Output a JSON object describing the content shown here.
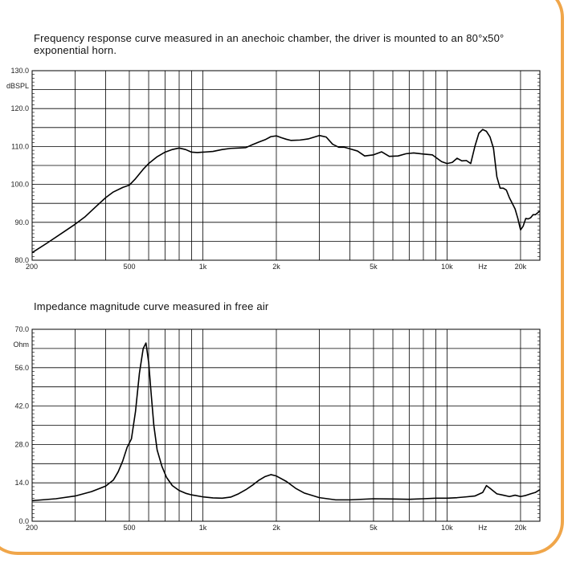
{
  "charts": {
    "frequency_response": {
      "caption": "Frequency response curve measured  in an anechoic chamber, the driver is mounted to an 80°x50° exponential horn."
    },
    "impedance": {
      "caption": "Impedance  magnitude curve measured in free air"
    }
  },
  "colors": {
    "frame": "#f0a64a",
    "grid": "#000000",
    "curve": "#000000"
  },
  "chart_data": [
    {
      "type": "line",
      "title": "Frequency response curve measured  in an anechoic chamber, the driver is mounted to an 80°x50° exponential horn.",
      "xscale": "log",
      "xlim": [
        200,
        24000
      ],
      "ylim": [
        80,
        130
      ],
      "y_unit": "dBSPL",
      "x_unit": "Hz",
      "x_tick_labels": [
        {
          "v": 200,
          "t": "200"
        },
        {
          "v": 500,
          "t": "500"
        },
        {
          "v": 1000,
          "t": "1k"
        },
        {
          "v": 2000,
          "t": "2k"
        },
        {
          "v": 5000,
          "t": "5k"
        },
        {
          "v": 10000,
          "t": "10k"
        },
        {
          "v": 20000,
          "t": "20k"
        }
      ],
      "y_tick_labels": [
        {
          "v": 130,
          "t": "130.0"
        },
        {
          "v": 120,
          "t": "120.0"
        },
        {
          "v": 110,
          "t": "110.0"
        },
        {
          "v": 100,
          "t": "100.0"
        },
        {
          "v": 90,
          "t": "90.0"
        },
        {
          "v": 80,
          "t": "80.0"
        }
      ],
      "grid": true,
      "series": [
        {
          "x": [
            200,
            230,
            270,
            300,
            330,
            370,
            400,
            430,
            470,
            500,
            530,
            570,
            600,
            650,
            700,
            750,
            800,
            850,
            900,
            950,
            1000,
            1100,
            1200,
            1300,
            1400,
            1500,
            1600,
            1700,
            1800,
            1900,
            2000,
            2100,
            2200,
            2300,
            2500,
            2700,
            3000,
            3200,
            3400,
            3600,
            3800,
            4000,
            4300,
            4600,
            5000,
            5400,
            5800,
            6300,
            6800,
            7300,
            8000,
            8700,
            9500,
            10000,
            10500,
            11000,
            11500,
            12000,
            12500,
            13000,
            13500,
            14000,
            14500,
            15000,
            15500,
            16000,
            16500,
            17000,
            17500,
            18000,
            18500,
            19000,
            19500,
            20000,
            20500,
            21000,
            21500,
            22000,
            22500,
            23000,
            23500,
            24000
          ],
          "y": [
            82,
            84.5,
            87.5,
            89.5,
            91.5,
            94.5,
            96.5,
            98,
            99.2,
            99.8,
            101.5,
            104,
            105.5,
            107.3,
            108.5,
            109.2,
            109.6,
            109.2,
            108.5,
            108.4,
            108.5,
            108.7,
            109.2,
            109.5,
            109.6,
            109.7,
            110.5,
            111.2,
            111.8,
            112.6,
            112.8,
            112.3,
            111.9,
            111.6,
            111.7,
            112,
            112.9,
            112.5,
            110.6,
            109.8,
            109.8,
            109.4,
            108.8,
            107.5,
            107.8,
            108.6,
            107.4,
            107.5,
            108.1,
            108.3,
            108,
            107.8,
            106,
            105.5,
            105.8,
            106.9,
            106.2,
            106.3,
            105.5,
            110,
            113.5,
            114.5,
            114,
            112.5,
            109.5,
            102,
            99,
            99,
            98.5,
            96.5,
            95,
            93.5,
            91,
            88,
            89,
            91,
            90.9,
            91.2,
            92,
            92,
            92.5,
            93
          ]
        }
      ]
    },
    {
      "type": "line",
      "title": "Impedance  magnitude curve measured in free air",
      "xscale": "log",
      "xlim": [
        200,
        24000
      ],
      "ylim": [
        0,
        70
      ],
      "y_unit": "Ohm",
      "x_unit": "Hz",
      "x_tick_labels": [
        {
          "v": 200,
          "t": "200"
        },
        {
          "v": 500,
          "t": "500"
        },
        {
          "v": 1000,
          "t": "1k"
        },
        {
          "v": 2000,
          "t": "2k"
        },
        {
          "v": 5000,
          "t": "5k"
        },
        {
          "v": 10000,
          "t": "10k"
        },
        {
          "v": 20000,
          "t": "20k"
        }
      ],
      "y_tick_labels": [
        {
          "v": 70,
          "t": "70.0"
        },
        {
          "v": 56,
          "t": "56.0"
        },
        {
          "v": 42,
          "t": "42.0"
        },
        {
          "v": 28,
          "t": "28.0"
        },
        {
          "v": 14,
          "t": "14.0"
        },
        {
          "v": 0,
          "t": "0.0"
        }
      ],
      "grid": true,
      "series": [
        {
          "x": [
            200,
            250,
            300,
            350,
            400,
            430,
            450,
            470,
            490,
            510,
            530,
            550,
            570,
            585,
            600,
            615,
            630,
            650,
            680,
            710,
            750,
            800,
            850,
            900,
            1000,
            1100,
            1200,
            1300,
            1400,
            1500,
            1600,
            1700,
            1800,
            1900,
            2000,
            2200,
            2400,
            2600,
            3000,
            3500,
            4000,
            5000,
            6000,
            7000,
            8000,
            9000,
            10000,
            11000,
            12000,
            13000,
            14000,
            14500,
            15000,
            16000,
            17000,
            18000,
            19000,
            20000,
            21000,
            22000,
            23000,
            24000
          ],
          "y": [
            7.5,
            8.2,
            9.2,
            10.8,
            12.8,
            15,
            18,
            22,
            27,
            30,
            40,
            54,
            63,
            65,
            58,
            46,
            35,
            26,
            20,
            16,
            13,
            11.2,
            10.2,
            9.6,
            8.9,
            8.5,
            8.4,
            8.8,
            10,
            11.5,
            13.2,
            15,
            16.3,
            17,
            16.5,
            14.5,
            12,
            10.3,
            8.6,
            7.8,
            7.8,
            8.2,
            8.1,
            8,
            8.2,
            8.4,
            8.4,
            8.6,
            8.9,
            9.2,
            10.5,
            13,
            12,
            10,
            9.5,
            9,
            9.5,
            9,
            9.4,
            10,
            10.5,
            11.5
          ]
        }
      ]
    }
  ]
}
